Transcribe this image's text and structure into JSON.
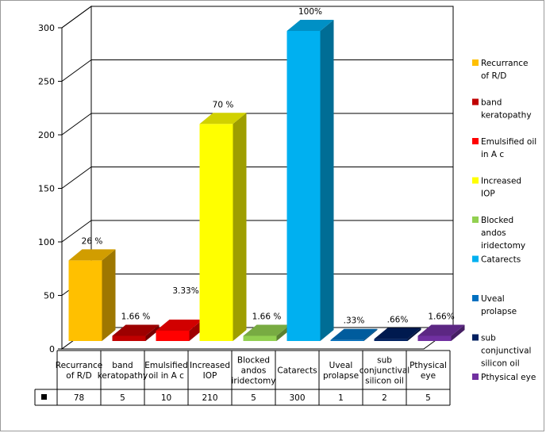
{
  "chart_data": {
    "type": "bar",
    "title": "",
    "xlabel": "",
    "ylabel": "",
    "ylim": [
      0,
      300
    ],
    "yticks": [
      0,
      50,
      100,
      150,
      200,
      250,
      300
    ],
    "grid": true,
    "legend_position": "right",
    "categories": [
      "Recurrance of R/D",
      "band keratopathy",
      "Emulsified oil in A c",
      "Increased IOP",
      "Blocked andos iridectomy",
      "Catarects",
      "Uveal prolapse",
      "sub conjunctival silicon oil",
      "Pthysical eye"
    ],
    "category_labels": [
      [
        "Recurrance",
        "of R/D"
      ],
      [
        "band",
        "keratopathy"
      ],
      [
        "Emulsified",
        "oil in A c"
      ],
      [
        "Increased",
        "IOP"
      ],
      [
        "Blocked",
        "andos",
        "iridectomy"
      ],
      [
        "Catarects"
      ],
      [
        "Uveal",
        "prolapse"
      ],
      [
        "sub",
        "conjunctival",
        "silicon oil"
      ],
      [
        "Pthysical",
        "eye"
      ]
    ],
    "values": [
      78,
      5,
      10,
      210,
      5,
      300,
      1,
      2,
      5
    ],
    "value_labels": [
      "78",
      "5",
      "10",
      "210",
      "5",
      "300",
      "1",
      "2",
      "5"
    ],
    "data_labels": [
      "26 %",
      "1.66 %",
      "3.33%",
      "70 %",
      "1.66 %",
      "100%",
      ".33%",
      ".66%",
      "1.66%"
    ],
    "colors": [
      "#FFC000",
      "#C00000",
      "#FF0000",
      "#FFFF00",
      "#92D050",
      "#00B0F0",
      "#0070C0",
      "#002060",
      "#7030A0"
    ],
    "legend": [
      {
        "label": [
          "Recurrance",
          "of R/D"
        ],
        "color": "#FFC000"
      },
      {
        "label": [
          "band",
          "keratopathy"
        ],
        "color": "#C00000"
      },
      {
        "label": [
          "Emulsified oil",
          "in A c"
        ],
        "color": "#FF0000"
      },
      {
        "label": [
          "Increased",
          "IOP"
        ],
        "color": "#FFFF00"
      },
      {
        "label": [
          "Blocked",
          "andos",
          "iridectomy"
        ],
        "color": "#92D050"
      },
      {
        "label": [
          "Catarects"
        ],
        "color": "#00B0F0"
      },
      {
        "label": [
          "Uveal",
          "prolapse"
        ],
        "color": "#0070C0"
      },
      {
        "label": [
          "sub",
          "conjunctival",
          "silicon oil"
        ],
        "color": "#002060"
      },
      {
        "label": [
          "Pthysical eye"
        ],
        "color": "#7030A0"
      }
    ]
  }
}
